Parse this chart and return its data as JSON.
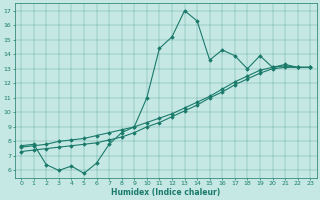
{
  "xlabel": "Humidex (Indice chaleur)",
  "xlim": [
    -0.5,
    23.5
  ],
  "ylim": [
    5.5,
    17.5
  ],
  "xticks": [
    0,
    1,
    2,
    3,
    4,
    5,
    6,
    7,
    8,
    9,
    10,
    11,
    12,
    13,
    14,
    15,
    16,
    17,
    18,
    19,
    20,
    21,
    22,
    23
  ],
  "yticks": [
    6,
    7,
    8,
    9,
    10,
    11,
    12,
    13,
    14,
    15,
    16,
    17
  ],
  "line_color": "#1a7a6a",
  "background_color": "#c5e8e5",
  "line1_x": [
    0,
    1,
    2,
    3,
    4,
    5,
    6,
    7,
    8,
    9,
    10,
    11,
    12,
    13,
    14,
    15,
    16,
    17,
    18,
    19,
    20,
    21,
    22,
    23
  ],
  "line1_y": [
    7.7,
    7.8,
    6.4,
    6.0,
    6.3,
    5.8,
    6.5,
    7.8,
    8.6,
    9.0,
    11.0,
    14.4,
    15.2,
    17.0,
    16.3,
    13.6,
    14.3,
    13.9,
    13.0,
    13.9,
    13.1,
    13.3,
    13.1,
    13.1
  ],
  "line2_x": [
    0,
    1,
    2,
    3,
    4,
    5,
    6,
    7,
    8,
    9,
    10,
    11,
    12,
    13,
    14,
    15,
    16,
    17,
    18,
    19,
    20,
    21,
    22,
    23
  ],
  "line2_y": [
    7.6,
    7.7,
    7.8,
    8.0,
    8.1,
    8.2,
    8.4,
    8.6,
    8.8,
    9.0,
    9.3,
    9.6,
    9.9,
    10.3,
    10.7,
    11.1,
    11.6,
    12.1,
    12.5,
    12.9,
    13.1,
    13.2,
    13.1,
    13.1
  ],
  "line3_x": [
    0,
    1,
    2,
    3,
    4,
    5,
    6,
    7,
    8,
    9,
    10,
    11,
    12,
    13,
    14,
    15,
    16,
    17,
    18,
    19,
    20,
    21,
    22,
    23
  ],
  "line3_y": [
    7.3,
    7.4,
    7.5,
    7.6,
    7.7,
    7.8,
    7.9,
    8.1,
    8.3,
    8.6,
    9.0,
    9.3,
    9.7,
    10.1,
    10.5,
    11.0,
    11.4,
    11.9,
    12.3,
    12.7,
    13.0,
    13.1,
    13.1,
    13.1
  ]
}
